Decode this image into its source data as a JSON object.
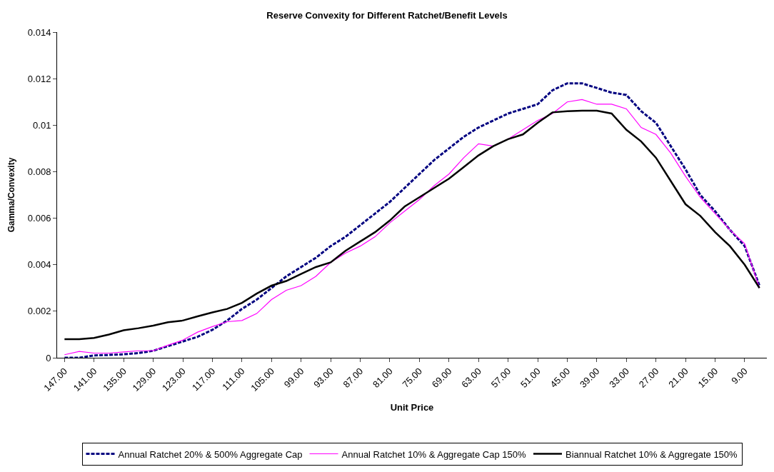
{
  "chart_data": {
    "type": "line",
    "title": "Reserve Convexity for Different Ratchet/Benefit Levels",
    "xlabel": "Unit Price",
    "ylabel": "Gamma/Convexity",
    "categories": [
      "147.00",
      null,
      "141.00",
      null,
      "135.00",
      null,
      "129.00",
      null,
      "123.00",
      null,
      "117.00",
      null,
      "111.00",
      null,
      "105.00",
      null,
      "99.00",
      null,
      "93.00",
      null,
      "87.00",
      null,
      "81.00",
      null,
      "75.00",
      null,
      "69.00",
      null,
      "63.00",
      null,
      "57.00",
      null,
      "51.00",
      null,
      "45.00",
      null,
      "39.00",
      null,
      "33.00",
      null,
      "27.00",
      null,
      "21.00",
      null,
      "15.00",
      null,
      "9.00",
      null
    ],
    "series": [
      {
        "name": "Annual Ratchet 20% & 500% Aggregate Cap",
        "color": "#000080",
        "line_style": "dashed",
        "values": [
          0.0,
          0.0,
          0.0001,
          0.00012,
          0.00015,
          0.0002,
          0.0003,
          0.0005,
          0.0007,
          0.0009,
          0.0012,
          0.0016,
          0.0021,
          0.0025,
          0.003,
          0.0035,
          0.0039,
          0.0043,
          0.0048,
          0.0052,
          0.0057,
          0.0062,
          0.0067,
          0.0073,
          0.0079,
          0.0085,
          0.009,
          0.0095,
          0.0099,
          0.0102,
          0.0105,
          0.0107,
          0.0109,
          0.0115,
          0.0118,
          0.0118,
          0.0116,
          0.0114,
          0.0113,
          0.0106,
          0.0101,
          0.0091,
          0.0081,
          0.007,
          0.0063,
          0.0055,
          0.0048,
          0.0031
        ]
      },
      {
        "name": "Annual Ratchet 10% & Aggregate Cap 150%",
        "color": "#ff00ff",
        "line_style": "solid",
        "values": [
          0.00013,
          0.00027,
          0.0002,
          0.0002,
          0.00025,
          0.0003,
          0.0003,
          0.00054,
          0.00076,
          0.0011,
          0.00134,
          0.00155,
          0.0016,
          0.0019,
          0.0025,
          0.0029,
          0.0031,
          0.0035,
          0.0041,
          0.0045,
          0.0048,
          0.0052,
          0.0058,
          0.0063,
          0.0068,
          0.0074,
          0.0079,
          0.0086,
          0.0092,
          0.0091,
          0.0094,
          0.0098,
          0.0102,
          0.0105,
          0.011,
          0.0111,
          0.0109,
          0.0109,
          0.0107,
          0.0099,
          0.0096,
          0.0088,
          0.0078,
          0.0069,
          0.0062,
          0.0055,
          0.0049,
          0.003
        ]
      },
      {
        "name": "Biannual Ratchet 10% & Aggregate 150%",
        "color": "#000000",
        "line_style": "solid",
        "values": [
          0.0008,
          0.0008,
          0.00085,
          0.001,
          0.00118,
          0.00127,
          0.00138,
          0.00153,
          0.0016,
          0.00178,
          0.00195,
          0.0021,
          0.00236,
          0.00276,
          0.0031,
          0.0033,
          0.0036,
          0.0039,
          0.0041,
          0.0046,
          0.005,
          0.0054,
          0.0059,
          0.0065,
          0.0069,
          0.0073,
          0.0077,
          0.0082,
          0.0087,
          0.0091,
          0.0094,
          0.0096,
          0.0101,
          0.01055,
          0.0106,
          0.01062,
          0.01062,
          0.0105,
          0.0098,
          0.0093,
          0.0086,
          0.0076,
          0.0066,
          0.0061,
          0.0054,
          0.0048,
          0.004,
          0.003
        ]
      }
    ],
    "ylim": [
      0,
      0.014
    ],
    "yticks": [
      0,
      0.002,
      0.004,
      0.006,
      0.008,
      0.01,
      0.012,
      0.014
    ],
    "grid": false,
    "legend": "bottom",
    "marker": "none"
  }
}
